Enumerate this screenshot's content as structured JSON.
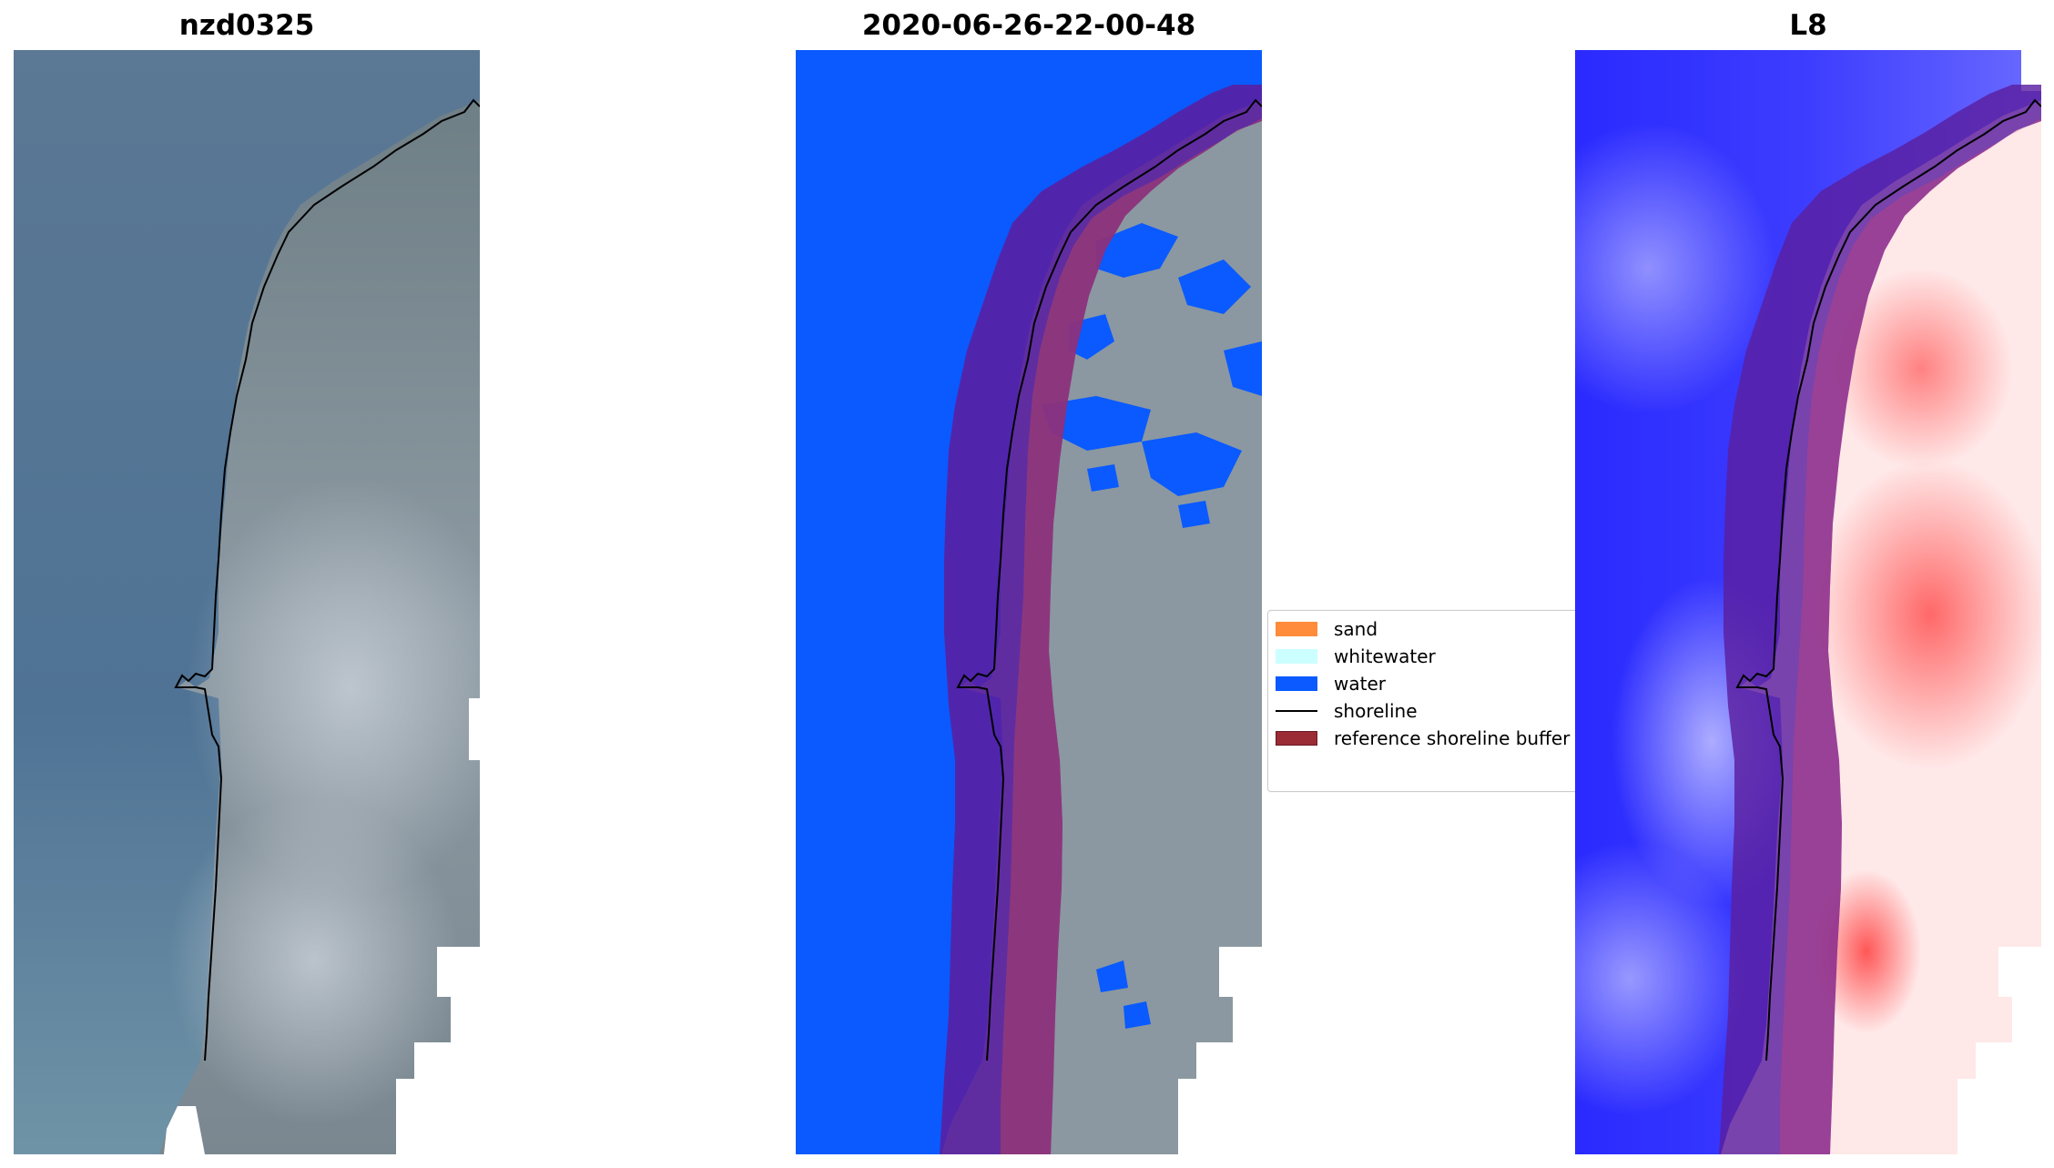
{
  "panels": [
    {
      "title": "nzd0325"
    },
    {
      "title": "2020-06-26-22-00-48"
    },
    {
      "title": "L8"
    }
  ],
  "legend": {
    "items": [
      {
        "label": "sand",
        "color": "#ff8c3a",
        "kind": "patch"
      },
      {
        "label": "whitewater",
        "color": "#ccffff",
        "kind": "patch"
      },
      {
        "label": "water",
        "color": "#0a5aff",
        "kind": "patch"
      },
      {
        "label": "shoreline",
        "color": "#000000",
        "kind": "line"
      },
      {
        "label": "reference shoreline buffer",
        "color": "#9b2b35",
        "kind": "patch"
      }
    ]
  },
  "colors": {
    "sea": "#52708f",
    "land": "#7a8a92",
    "water_mask": "#0a5aff",
    "buffer": "#6a1f8f",
    "index_water": "#2a2aff",
    "index_land": "#ff4444"
  }
}
